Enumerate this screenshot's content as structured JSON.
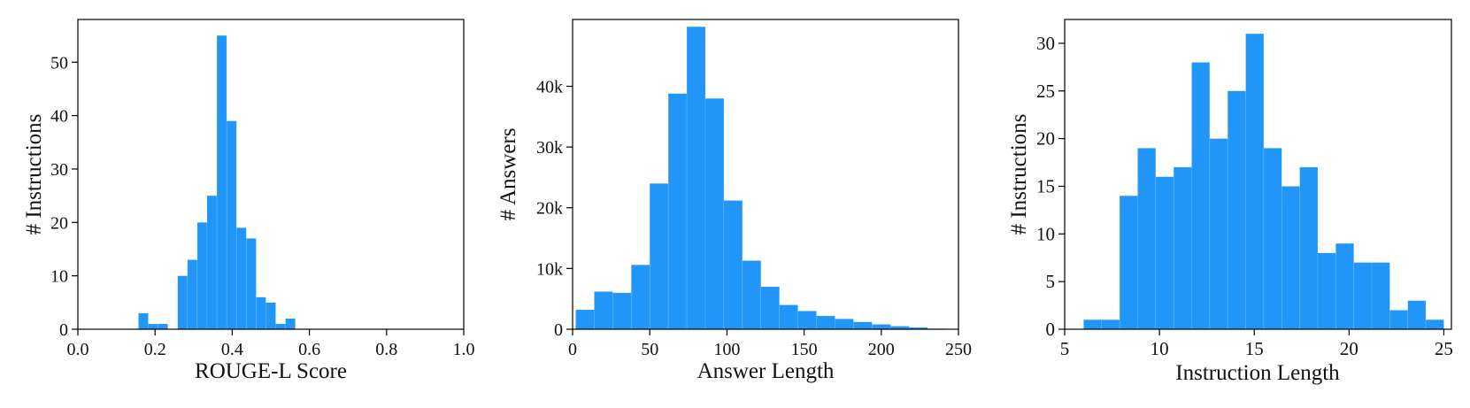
{
  "bar_color": "#2196f8",
  "chart_data": [
    {
      "type": "bar",
      "xlabel": "ROUGE-L Score",
      "ylabel": "# Instructions",
      "xlim": [
        0.0,
        1.0
      ],
      "ylim": [
        0,
        58
      ],
      "xticks": [
        0.0,
        0.2,
        0.4,
        0.6,
        0.8,
        1.0
      ],
      "xtick_labels": [
        "0.0",
        "0.2",
        "0.4",
        "0.6",
        "0.8",
        "1.0"
      ],
      "yticks": [
        0,
        10,
        20,
        30,
        40,
        50
      ],
      "ytick_labels": [
        "0",
        "10",
        "20",
        "30",
        "40",
        "50"
      ],
      "bin_edges": [
        0.157,
        0.1824,
        0.2078,
        0.2332,
        0.2586,
        0.284,
        0.3094,
        0.3348,
        0.3602,
        0.3856,
        0.411,
        0.4364,
        0.4618,
        0.4872,
        0.5126,
        0.538,
        0.5634,
        0.5888,
        0.6142,
        0.6396,
        0.665
      ],
      "values": [
        3,
        1,
        1,
        0,
        10,
        13,
        20,
        25,
        55,
        39,
        19,
        17,
        6,
        5,
        1,
        2,
        0,
        0,
        0,
        0
      ]
    },
    {
      "type": "bar",
      "xlabel": "Answer Length",
      "ylabel": "# Answers",
      "xlim": [
        0,
        250
      ],
      "ylim": [
        0,
        51000
      ],
      "xticks": [
        0,
        50,
        100,
        150,
        200,
        250
      ],
      "xtick_labels": [
        "0",
        "50",
        "100",
        "150",
        "200",
        "250"
      ],
      "yticks": [
        0,
        10000,
        20000,
        30000,
        40000
      ],
      "ytick_labels": [
        "0",
        "10k",
        "20k",
        "30k",
        "40k"
      ],
      "bin_edges": [
        2,
        14,
        26,
        38,
        50,
        62,
        74,
        86,
        98,
        110,
        122,
        134,
        146,
        158,
        170,
        182,
        194,
        206,
        218,
        230,
        242
      ],
      "values": [
        3200,
        6200,
        6000,
        10600,
        24000,
        38800,
        49800,
        38000,
        21200,
        11300,
        7000,
        4000,
        3000,
        2200,
        1700,
        1200,
        800,
        500,
        300,
        100
      ]
    },
    {
      "type": "bar",
      "xlabel": "Instruction Length",
      "ylabel": "# Instructions",
      "xlim": [
        5,
        25.4
      ],
      "ylim": [
        0,
        32.5
      ],
      "xticks": [
        5,
        10,
        15,
        20,
        25
      ],
      "xtick_labels": [
        "5",
        "10",
        "15",
        "20",
        "25"
      ],
      "yticks": [
        0,
        5,
        10,
        15,
        20,
        25,
        30
      ],
      "ytick_labels": [
        "0",
        "5",
        "10",
        "15",
        "20",
        "25",
        "30"
      ],
      "bin_edges": [
        6,
        6.95,
        7.9,
        8.85,
        9.8,
        10.75,
        11.7,
        12.65,
        13.6,
        14.55,
        15.5,
        16.45,
        17.4,
        18.35,
        19.3,
        20.25,
        21.2,
        22.15,
        23.1,
        24.05,
        25
      ],
      "values": [
        1,
        1,
        14,
        19,
        16,
        17,
        28,
        20,
        25,
        31,
        19,
        15,
        17,
        8,
        9,
        7,
        7,
        2,
        3,
        1
      ]
    }
  ]
}
